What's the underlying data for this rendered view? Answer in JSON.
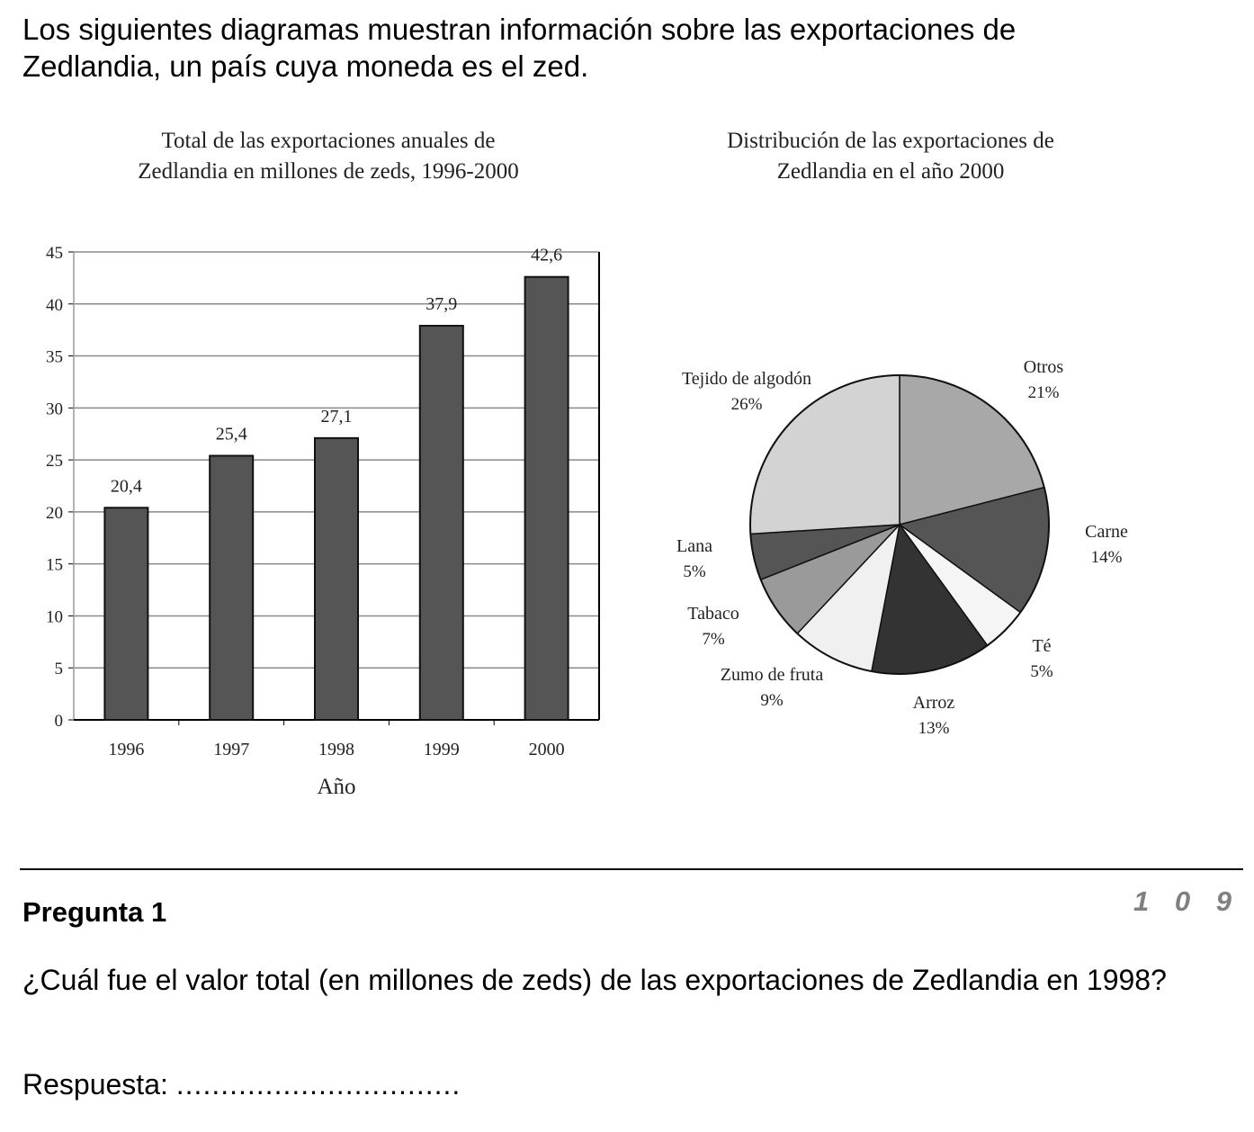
{
  "intro": {
    "line1": "Los siguientes diagramas muestran información sobre las exportaciones de",
    "line2": "Zedlandia, un país cuya moneda es el zed."
  },
  "chart_data": [
    {
      "type": "bar",
      "title": "Total de las exportaciones anuales de Zedlandia en millones de zeds, 1996-2000",
      "title_lines": [
        "Total de las exportaciones anuales de",
        "Zedlandia en millones de zeds, 1996-2000"
      ],
      "categories": [
        "1996",
        "1997",
        "1998",
        "1999",
        "2000"
      ],
      "values": [
        20.4,
        25.4,
        27.1,
        37.9,
        42.6
      ],
      "value_labels": [
        "20,4",
        "25,4",
        "27,1",
        "37,9",
        "42,6"
      ],
      "xlabel": "Año",
      "ylabel": "",
      "ylim": [
        0,
        45
      ],
      "yticks": [
        0,
        5,
        10,
        15,
        20,
        25,
        30,
        35,
        40,
        45
      ],
      "grid": true,
      "bar_color": "#555555"
    },
    {
      "type": "pie",
      "title": "Distribución de las exportaciones de Zedlandia en el año 2000",
      "title_lines": [
        "Distribución de las exportaciones de",
        "Zedlandia en el año 2000"
      ],
      "slices": [
        {
          "label": "Otros",
          "pct_label": "21%",
          "value": 21,
          "color": "#a8a8a8"
        },
        {
          "label": "Carne",
          "pct_label": "14%",
          "value": 14,
          "color": "#555555"
        },
        {
          "label": "Té",
          "pct_label": "5%",
          "value": 5,
          "color": "#f5f5f5"
        },
        {
          "label": "Arroz",
          "pct_label": "13%",
          "value": 13,
          "color": "#333333"
        },
        {
          "label": "Zumo de fruta",
          "pct_label": "9%",
          "value": 9,
          "color": "#f0f0f0"
        },
        {
          "label": "Tabaco",
          "pct_label": "7%",
          "value": 7,
          "color": "#9a9a9a"
        },
        {
          "label": "Lana",
          "pct_label": "5%",
          "value": 5,
          "color": "#555555"
        },
        {
          "label": "Tejido de algodón",
          "pct_label": "26%",
          "value": 26,
          "color": "#d3d3d3"
        }
      ]
    }
  ],
  "question": {
    "label": "Pregunta 1",
    "page_number": "1 0 9",
    "text": "¿Cuál fue el valor total (en millones de zeds) de las exportaciones de Zedlandia en 1998?",
    "answer_label": "Respuesta:",
    "answer_dots": "................................"
  }
}
